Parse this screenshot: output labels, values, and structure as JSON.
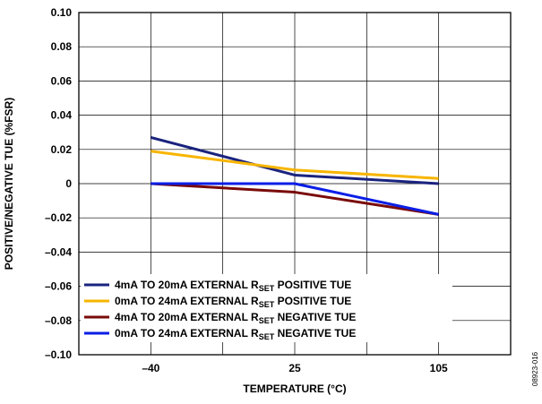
{
  "chart_data": {
    "type": "line",
    "title": "",
    "xlabel": "TEMPERATURE (°C)",
    "ylabel": "POSITIVE/NEGATIVE TUE (%FSR)",
    "x": [
      "–40",
      "25",
      "105"
    ],
    "ylim": [
      -0.1,
      0.1
    ],
    "y_ticks": [
      "0.10",
      "0.08",
      "0.06",
      "0.04",
      "0.02",
      "0",
      "–0.02",
      "–0.04",
      "–0.06",
      "–0.08",
      "–0.10"
    ],
    "y_tick_values": [
      0.1,
      0.08,
      0.06,
      0.04,
      0.02,
      0,
      -0.02,
      -0.04,
      -0.06,
      -0.08,
      -0.1
    ],
    "grid": true,
    "legend_position": "bottom-inside",
    "series": [
      {
        "name_main": "4mA TO 20mA EXTERNAL R",
        "name_sub": "SET",
        "name_tail": " POSITIVE TUE",
        "color": "#1a237e",
        "values": [
          0.027,
          0.005,
          0.0
        ]
      },
      {
        "name_main": "0mA TO 24mA EXTERNAL R",
        "name_sub": "SET",
        "name_tail": " POSITIVE TUE",
        "color": "#f7b500",
        "values": [
          0.019,
          0.008,
          0.003
        ]
      },
      {
        "name_main": "4mA TO 20mA EXTERNAL R",
        "name_sub": "SET",
        "name_tail": " NEGATIVE TUE",
        "color": "#7a0a0a",
        "values": [
          0.0,
          -0.005,
          -0.018
        ]
      },
      {
        "name_main": "0mA TO 24mA EXTERNAL R",
        "name_sub": "SET",
        "name_tail": " NEGATIVE TUE",
        "color": "#0a1ee6",
        "values": [
          0.0,
          0.0,
          -0.018
        ]
      }
    ]
  },
  "figure_id": "08923-016"
}
